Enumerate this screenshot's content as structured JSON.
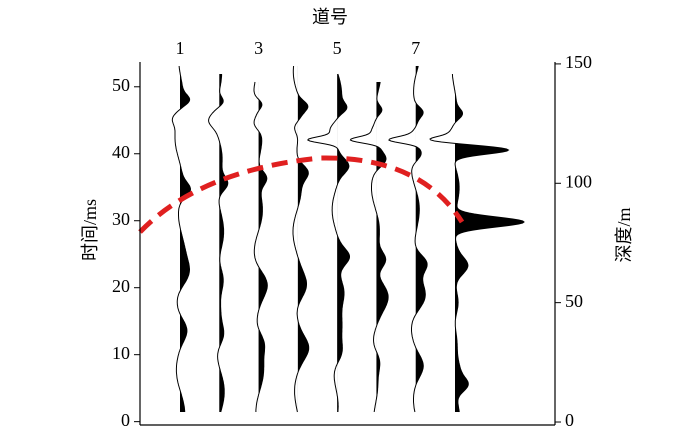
{
  "chart_data": {
    "type": "wiggle",
    "title": "道号",
    "ylabel": "时间/ms",
    "y2label": "深度/m",
    "categories": [
      "1",
      null,
      "3",
      null,
      "5",
      null,
      "7",
      null
    ],
    "ylim": [
      -0.5,
      53.7
    ],
    "yticks": [
      0,
      10,
      20,
      30,
      40,
      50
    ],
    "y2lim": [
      -1.25,
      150.8
    ],
    "y2ticks": [
      0,
      50,
      100,
      150
    ]
  }
}
